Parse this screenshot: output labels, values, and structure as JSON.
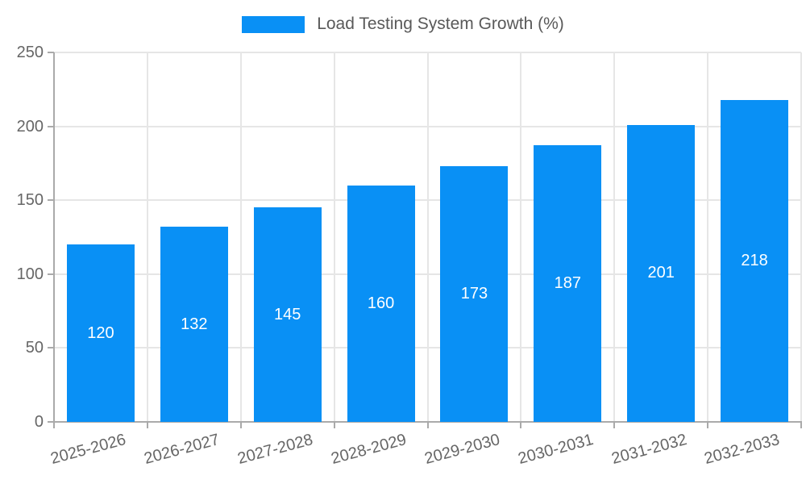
{
  "chart_data": {
    "type": "bar",
    "title": "Load Testing System Growth (%)",
    "categories": [
      "2025-2026",
      "2026-2027",
      "2027-2028",
      "2028-2029",
      "2029-2030",
      "2030-2031",
      "2031-2032",
      "2032-2033"
    ],
    "values": [
      120,
      132,
      145,
      160,
      173,
      187,
      201,
      218
    ],
    "xlabel": "",
    "ylabel": "",
    "ylim": [
      0,
      250
    ],
    "yticks": [
      0,
      50,
      100,
      150,
      200,
      250
    ],
    "grid": true,
    "legend_position": "top-center",
    "value_labels": "centered-inside-bars",
    "colors": {
      "bar": "#0990f5",
      "value_label": "#ffffff",
      "axis_line": "#aaaaaa",
      "gridline": "#e6e6e6",
      "tick_label": "#666666",
      "title": "#595959",
      "background": "#ffffff"
    }
  }
}
